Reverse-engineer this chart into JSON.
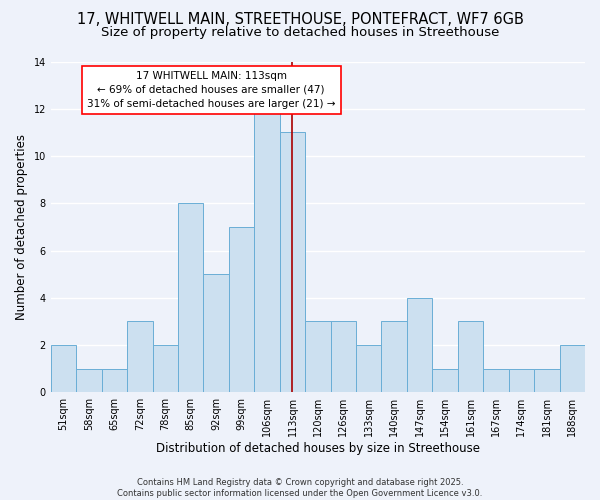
{
  "title_line1": "17, WHITWELL MAIN, STREETHOUSE, PONTEFRACT, WF7 6GB",
  "title_line2": "Size of property relative to detached houses in Streethouse",
  "xlabel": "Distribution of detached houses by size in Streethouse",
  "ylabel": "Number of detached properties",
  "categories": [
    "51sqm",
    "58sqm",
    "65sqm",
    "72sqm",
    "78sqm",
    "85sqm",
    "92sqm",
    "99sqm",
    "106sqm",
    "113sqm",
    "120sqm",
    "126sqm",
    "133sqm",
    "140sqm",
    "147sqm",
    "154sqm",
    "161sqm",
    "167sqm",
    "174sqm",
    "181sqm",
    "188sqm"
  ],
  "values": [
    2,
    1,
    1,
    3,
    2,
    8,
    5,
    7,
    12,
    11,
    3,
    3,
    2,
    3,
    4,
    1,
    3,
    1,
    1,
    1,
    2
  ],
  "highlight_index": 9,
  "bar_color": "#cce0f0",
  "bar_edgecolor": "#6aaed6",
  "highlight_line_color": "#aa0000",
  "ylim": [
    0,
    14
  ],
  "yticks": [
    0,
    2,
    4,
    6,
    8,
    10,
    12,
    14
  ],
  "annotation_text": "17 WHITWELL MAIN: 113sqm\n← 69% of detached houses are smaller (47)\n31% of semi-detached houses are larger (21) →",
  "footnote": "Contains HM Land Registry data © Crown copyright and database right 2025.\nContains public sector information licensed under the Open Government Licence v3.0.",
  "background_color": "#eef2fa",
  "grid_color": "#ffffff",
  "title_fontsize": 10.5,
  "subtitle_fontsize": 9.5,
  "axis_label_fontsize": 8.5,
  "tick_fontsize": 7,
  "annotation_fontsize": 7.5,
  "footnote_fontsize": 6
}
